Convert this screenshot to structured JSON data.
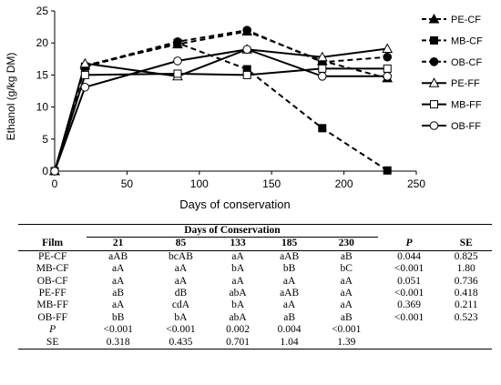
{
  "chart_data": {
    "type": "line",
    "ylabel": "Ethanol (g/kg DM)",
    "xlabel": "Days of conservation",
    "xlim": [
      0,
      250
    ],
    "ylim": [
      0,
      25
    ],
    "xticks": [
      0,
      50,
      100,
      150,
      200,
      250
    ],
    "yticks": [
      0,
      5,
      10,
      15,
      20,
      25
    ],
    "grid": false,
    "legend_position": "right",
    "x": [
      0,
      21,
      85,
      133,
      185,
      230
    ],
    "series": [
      {
        "name": "PE-CF",
        "dash": "dashed",
        "marker": "triangle",
        "fill": "#000000",
        "values": [
          0,
          16.5,
          19.8,
          21.8,
          17.2,
          14.5
        ]
      },
      {
        "name": "MB-CF",
        "dash": "dashed",
        "marker": "square",
        "fill": "#000000",
        "values": [
          0,
          16.3,
          20.0,
          15.9,
          6.7,
          0.1
        ]
      },
      {
        "name": "OB-CF",
        "dash": "dashed",
        "marker": "circle",
        "fill": "#000000",
        "values": [
          0,
          16.4,
          20.2,
          22.0,
          17.0,
          17.8
        ]
      },
      {
        "name": "PE-FF",
        "dash": "solid",
        "marker": "triangle",
        "fill": "#ffffff",
        "values": [
          0,
          16.8,
          14.8,
          19.0,
          17.8,
          19.1
        ]
      },
      {
        "name": "MB-FF",
        "dash": "solid",
        "marker": "square",
        "fill": "#ffffff",
        "values": [
          0,
          15.0,
          15.2,
          15.0,
          16.0,
          16.0
        ]
      },
      {
        "name": "OB-FF",
        "dash": "solid",
        "marker": "circle",
        "fill": "#ffffff",
        "values": [
          0,
          13.1,
          17.2,
          19.0,
          14.8,
          14.8
        ]
      }
    ]
  },
  "table": {
    "group_header": "Days of Conservation",
    "film_header": "Film",
    "columns": [
      "21",
      "85",
      "133",
      "185",
      "230",
      "P",
      "SE"
    ],
    "rows": [
      {
        "film": "PE-CF",
        "cells": [
          "aAB",
          "bcAB",
          "aA",
          "aAB",
          "aB",
          "0.044",
          "0.825"
        ]
      },
      {
        "film": "MB-CF",
        "cells": [
          "aA",
          "aA",
          "bA",
          "bB",
          "bC",
          "<0.001",
          "1.80"
        ]
      },
      {
        "film": "OB-CF",
        "cells": [
          "aA",
          "aA",
          "aA",
          "aA",
          "aA",
          "0.051",
          "0.736"
        ]
      },
      {
        "film": "PE-FF",
        "cells": [
          "aB",
          "dB",
          "abA",
          "aAB",
          "aA",
          "<0.001",
          "0.418"
        ]
      },
      {
        "film": "MB-FF",
        "cells": [
          "aA",
          "cdA",
          "bA",
          "aA",
          "aA",
          "0.369",
          "0.211"
        ]
      },
      {
        "film": "OB-FF",
        "cells": [
          "bB",
          "bA",
          "abA",
          "aB",
          "aB",
          "<0.001",
          "0.523"
        ]
      }
    ],
    "footer_rows": [
      {
        "label": "P",
        "cells": [
          "<0.001",
          "<0.001",
          "0.002",
          "0.004",
          "<0.001",
          "",
          ""
        ]
      },
      {
        "label": "SE",
        "cells": [
          "0.318",
          "0.435",
          "0.701",
          "1.04",
          "1.39",
          "",
          ""
        ]
      }
    ]
  }
}
